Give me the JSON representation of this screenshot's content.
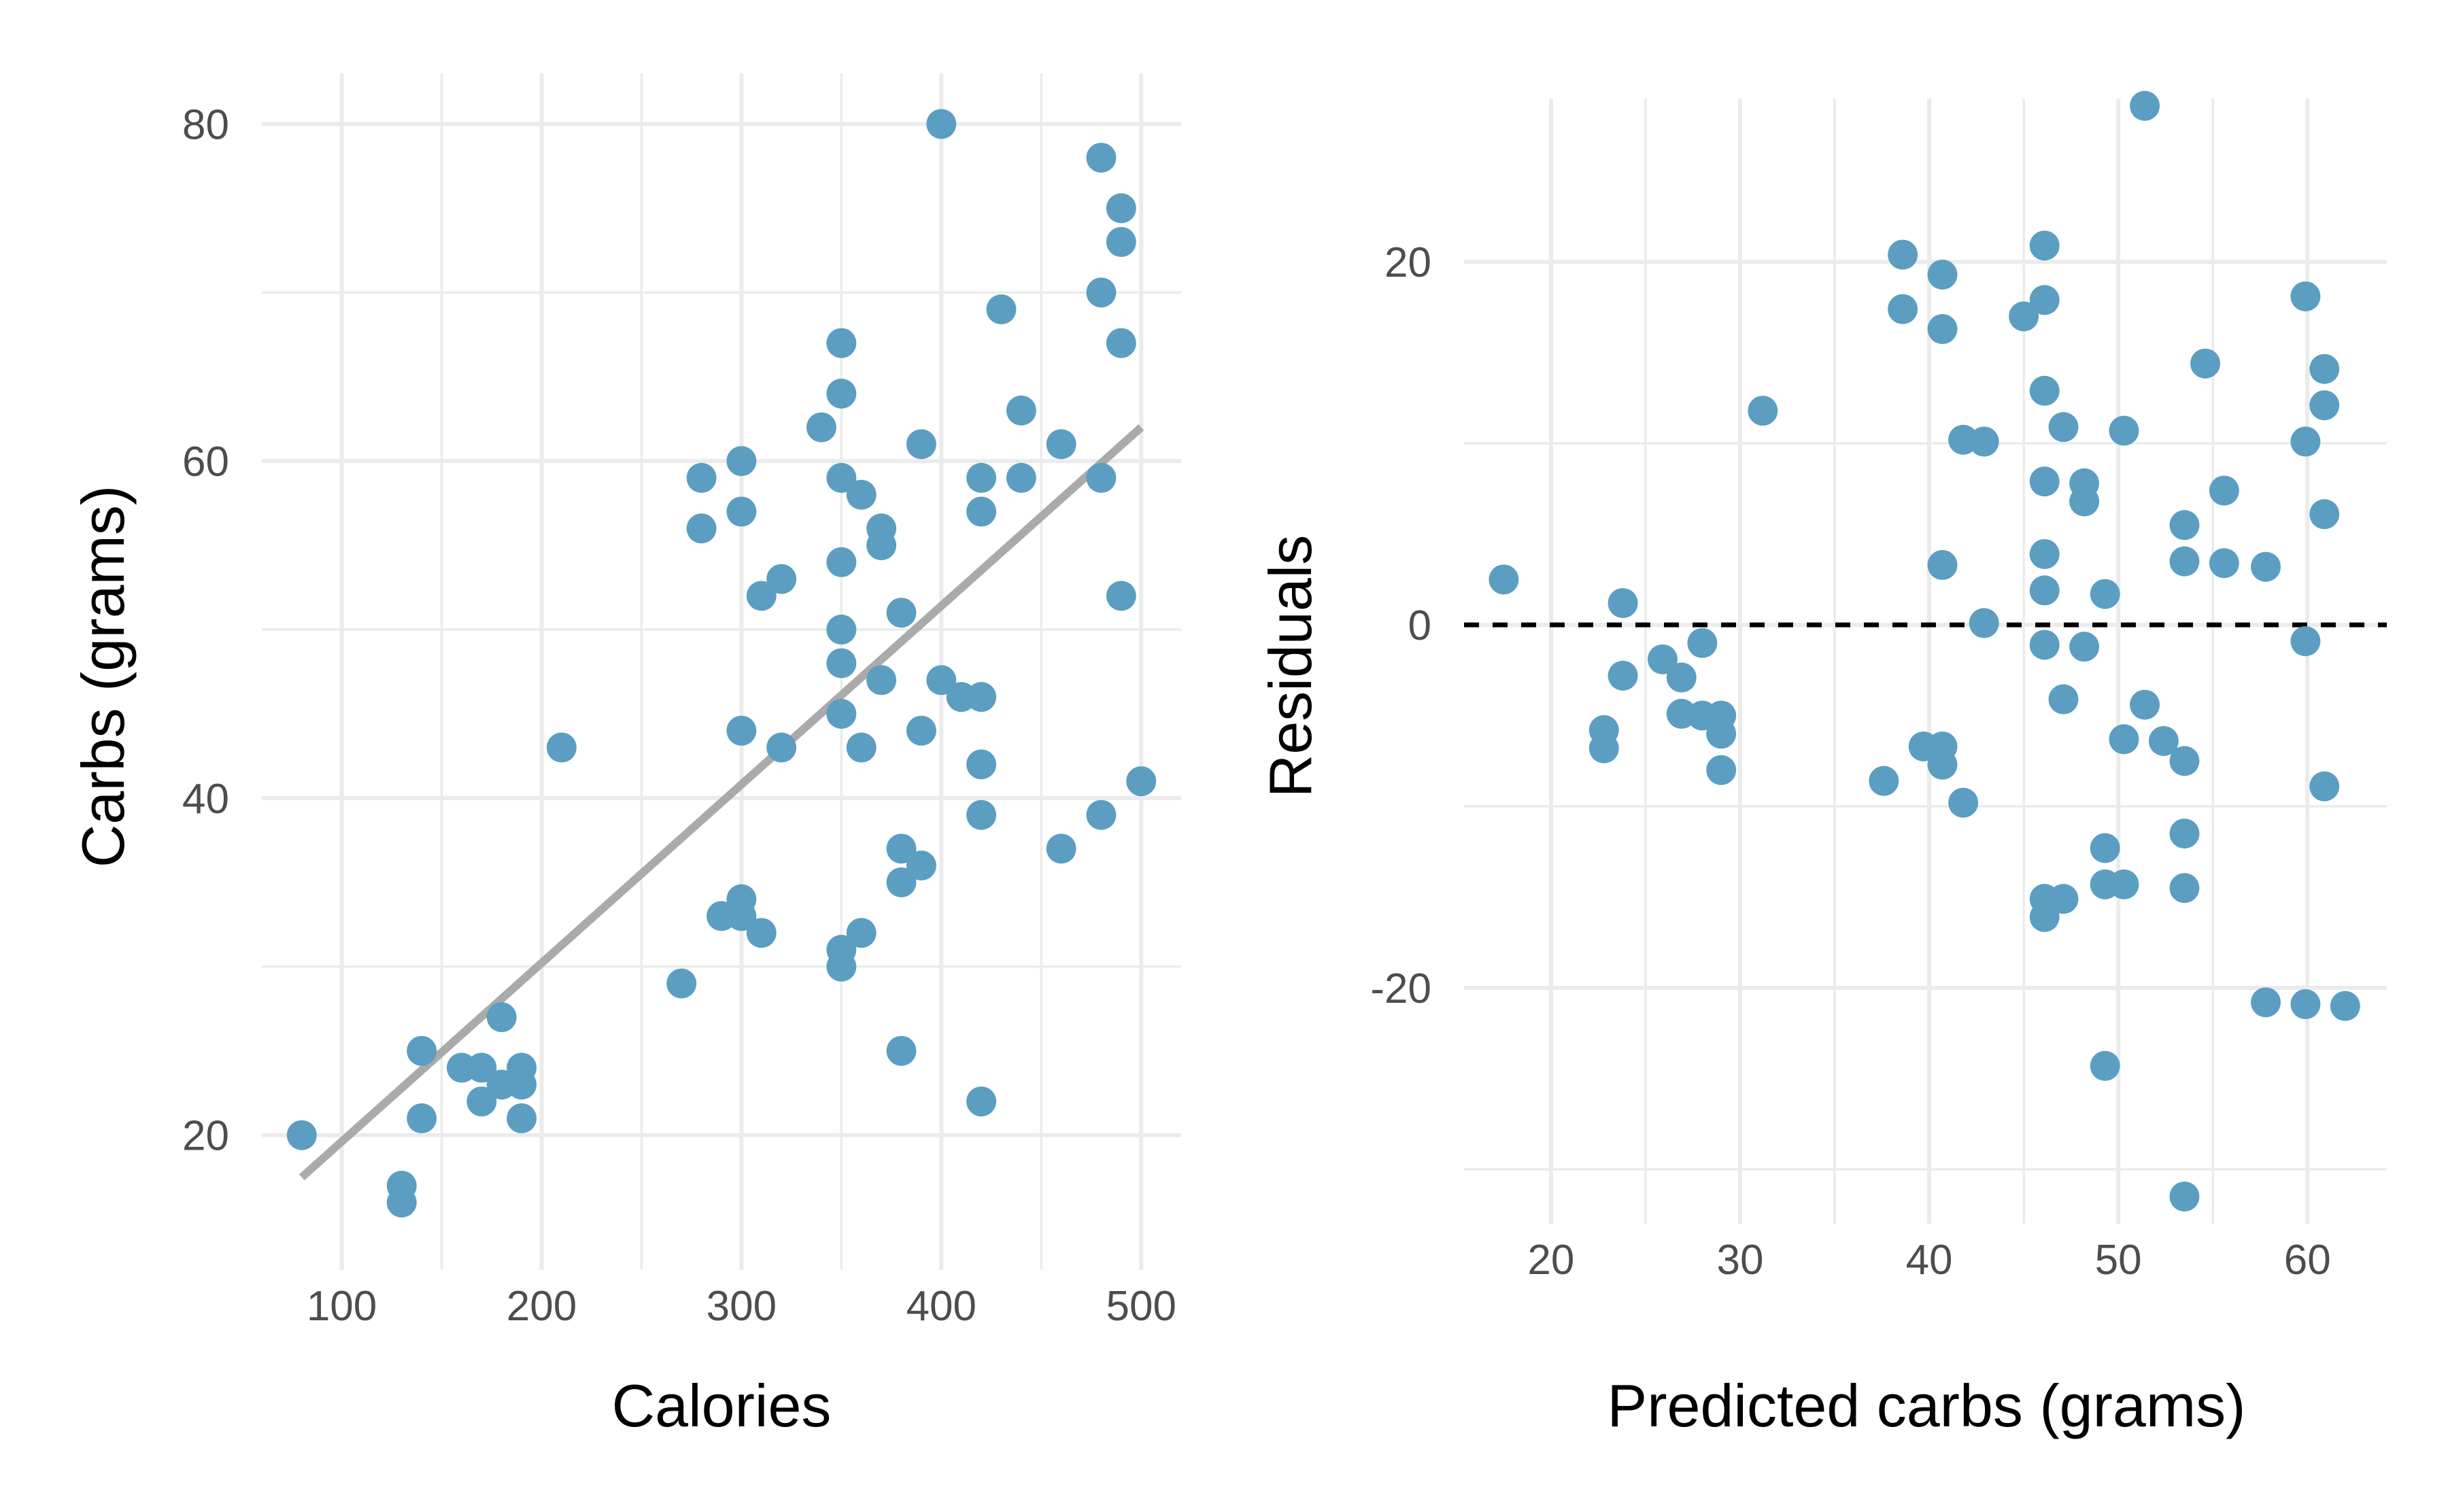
{
  "colors": {
    "point": "#5b9ec2",
    "fit_line": "#aaaaaa",
    "zero_line": "#000000",
    "grid": "#ebebeb"
  },
  "chart_data": [
    {
      "type": "scatter",
      "panel": "left",
      "xlabel": "Calories",
      "ylabel": "Carbs (grams)",
      "xlim": [
        60,
        520
      ],
      "ylim": [
        12,
        83
      ],
      "x_ticks": [
        100,
        200,
        300,
        400,
        500
      ],
      "y_ticks": [
        20,
        40,
        60,
        80
      ],
      "grid": true,
      "fit_line": {
        "x": [
          80,
          500
        ],
        "y": [
          17.5,
          62
        ]
      },
      "points": [
        [
          80,
          20
        ],
        [
          130,
          17
        ],
        [
          130,
          16
        ],
        [
          140,
          25
        ],
        [
          140,
          21
        ],
        [
          160,
          24
        ],
        [
          170,
          24
        ],
        [
          170,
          22
        ],
        [
          180,
          27
        ],
        [
          180,
          23
        ],
        [
          190,
          24
        ],
        [
          190,
          23
        ],
        [
          190,
          21
        ],
        [
          210,
          43
        ],
        [
          270,
          29
        ],
        [
          280,
          59
        ],
        [
          280,
          56
        ],
        [
          290,
          33
        ],
        [
          300,
          60
        ],
        [
          300,
          57
        ],
        [
          300,
          44
        ],
        [
          300,
          34
        ],
        [
          300,
          33
        ],
        [
          310,
          52
        ],
        [
          310,
          32
        ],
        [
          320,
          53
        ],
        [
          320,
          43
        ],
        [
          340,
          62
        ],
        [
          350,
          67
        ],
        [
          350,
          64
        ],
        [
          350,
          59
        ],
        [
          350,
          54
        ],
        [
          350,
          50
        ],
        [
          350,
          48
        ],
        [
          350,
          45
        ],
        [
          350,
          31
        ],
        [
          350,
          30
        ],
        [
          360,
          58
        ],
        [
          360,
          43
        ],
        [
          360,
          32
        ],
        [
          370,
          56
        ],
        [
          370,
          55
        ],
        [
          370,
          47
        ],
        [
          380,
          51
        ],
        [
          380,
          37
        ],
        [
          380,
          35
        ],
        [
          380,
          25
        ],
        [
          390,
          61
        ],
        [
          390,
          44
        ],
        [
          390,
          36
        ],
        [
          400,
          80
        ],
        [
          400,
          47
        ],
        [
          410,
          46
        ],
        [
          420,
          59
        ],
        [
          420,
          57
        ],
        [
          420,
          46
        ],
        [
          420,
          42
        ],
        [
          420,
          39
        ],
        [
          420,
          22
        ],
        [
          430,
          69
        ],
        [
          440,
          63
        ],
        [
          440,
          59
        ],
        [
          460,
          61
        ],
        [
          460,
          37
        ],
        [
          480,
          78
        ],
        [
          480,
          70
        ],
        [
          480,
          59
        ],
        [
          480,
          39
        ],
        [
          490,
          75
        ],
        [
          490,
          73
        ],
        [
          490,
          67
        ],
        [
          490,
          52
        ],
        [
          500,
          41
        ]
      ]
    },
    {
      "type": "scatter",
      "panel": "right",
      "xlabel": "Predicted carbs (grams)",
      "ylabel": "Residuals",
      "xlim": [
        15.4,
        64.2
      ],
      "ylim": [
        -33,
        29
      ],
      "x_ticks": [
        20,
        30,
        40,
        50,
        60
      ],
      "y_ticks": [
        -20,
        0,
        20
      ],
      "grid": true,
      "zero_line": {
        "y": 0,
        "style": "dashed"
      },
      "points": [
        [
          17.5,
          2.5
        ],
        [
          22.8,
          -5.8
        ],
        [
          22.8,
          -6.8
        ],
        [
          23.8,
          1.2
        ],
        [
          23.8,
          -2.8
        ],
        [
          25.9,
          -1.9
        ],
        [
          26.9,
          -2.9
        ],
        [
          26.9,
          -4.9
        ],
        [
          28.0,
          -1.0
        ],
        [
          28.0,
          -5.0
        ],
        [
          29.0,
          -5.0
        ],
        [
          29.0,
          -6.0
        ],
        [
          29.0,
          -8.0
        ],
        [
          31.2,
          11.8
        ],
        [
          37.6,
          -8.6
        ],
        [
          38.6,
          20.4
        ],
        [
          38.6,
          17.4
        ],
        [
          39.7,
          -6.7
        ],
        [
          40.7,
          19.3
        ],
        [
          40.7,
          16.3
        ],
        [
          40.7,
          3.3
        ],
        [
          40.7,
          -6.7
        ],
        [
          40.7,
          -7.7
        ],
        [
          41.8,
          10.2
        ],
        [
          41.8,
          -9.8
        ],
        [
          42.9,
          10.1
        ],
        [
          42.9,
          0.1
        ],
        [
          45.0,
          17.0
        ],
        [
          46.1,
          20.9
        ],
        [
          46.1,
          17.9
        ],
        [
          46.1,
          12.9
        ],
        [
          46.1,
          7.9
        ],
        [
          46.1,
          3.9
        ],
        [
          46.1,
          1.9
        ],
        [
          46.1,
          -1.1
        ],
        [
          46.1,
          -15.1
        ],
        [
          46.1,
          -16.1
        ],
        [
          47.1,
          10.9
        ],
        [
          47.1,
          -4.1
        ],
        [
          47.1,
          -15.1
        ],
        [
          48.2,
          7.8
        ],
        [
          48.2,
          6.8
        ],
        [
          48.2,
          -1.2
        ],
        [
          49.3,
          1.7
        ],
        [
          49.3,
          -12.3
        ],
        [
          49.3,
          -14.3
        ],
        [
          49.3,
          -24.3
        ],
        [
          50.3,
          10.7
        ],
        [
          50.3,
          -6.3
        ],
        [
          50.3,
          -14.3
        ],
        [
          51.4,
          28.6
        ],
        [
          51.4,
          -4.4
        ],
        [
          52.4,
          -6.4
        ],
        [
          53.5,
          5.5
        ],
        [
          53.5,
          3.5
        ],
        [
          53.5,
          -7.5
        ],
        [
          53.5,
          -11.5
        ],
        [
          53.5,
          -14.5
        ],
        [
          53.5,
          -31.5
        ],
        [
          54.6,
          14.4
        ],
        [
          55.6,
          7.4
        ],
        [
          55.6,
          3.4
        ],
        [
          57.8,
          3.2
        ],
        [
          57.8,
          -20.8
        ],
        [
          59.9,
          18.1
        ],
        [
          59.9,
          10.1
        ],
        [
          59.9,
          -0.9
        ],
        [
          59.9,
          -20.9
        ],
        [
          60.9,
          14.1
        ],
        [
          60.9,
          12.1
        ],
        [
          60.9,
          6.1
        ],
        [
          60.9,
          -8.9
        ],
        [
          62.0,
          -21.0
        ]
      ]
    }
  ]
}
